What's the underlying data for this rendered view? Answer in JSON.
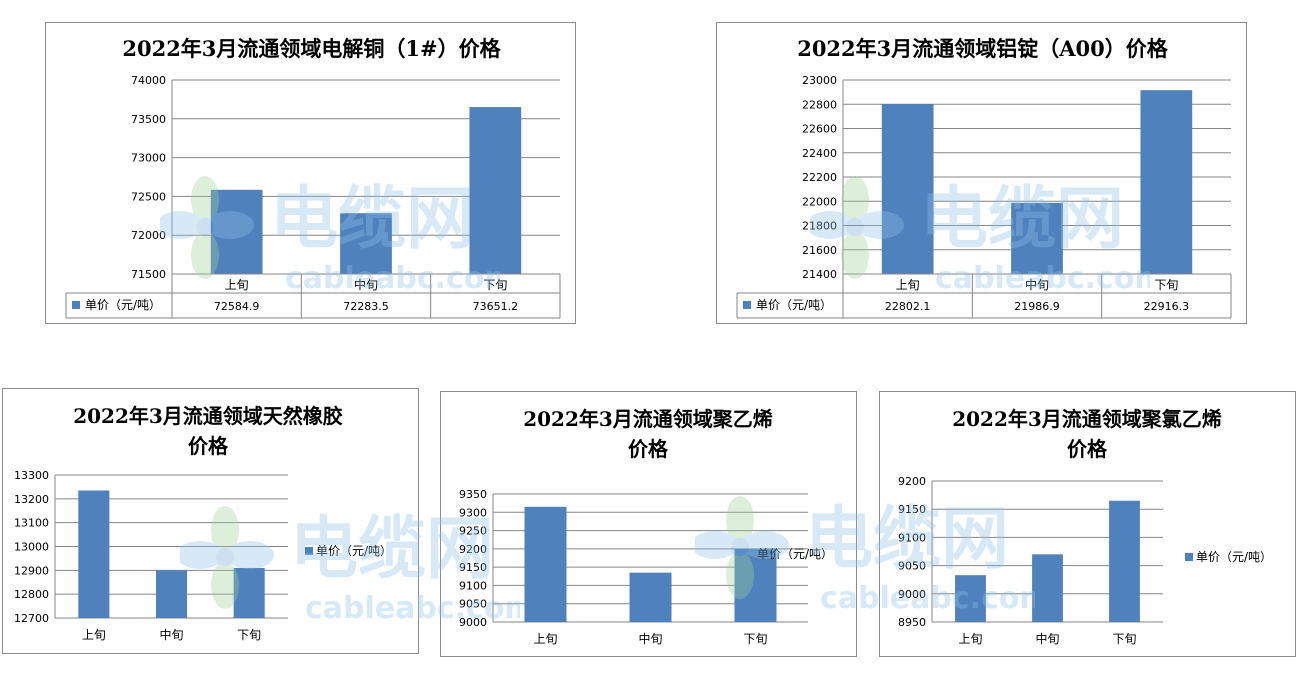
{
  "colors": {
    "bar": "#4f81bd",
    "grid": "#868686",
    "frame": "#8c8c8c"
  },
  "watermark": {
    "brand": "电缆网",
    "domain": "cableabc.com"
  },
  "chart_data": [
    {
      "id": "copper",
      "type": "bar",
      "title": "2022年3月流通领域电解铜（1#）价格",
      "categories": [
        "上旬",
        "中旬",
        "下旬"
      ],
      "series": [
        {
          "name": "单价（元/吨）",
          "values": [
            72584.9,
            72283.5,
            73651.2
          ]
        }
      ],
      "value_labels": [
        "72584.9",
        "72283.5",
        "73651.2"
      ],
      "ylim": [
        71500,
        74000
      ],
      "yticks": [
        71500,
        72000,
        72500,
        73000,
        73500,
        74000
      ],
      "grid": true,
      "legend": "data-table"
    },
    {
      "id": "aluminum",
      "type": "bar",
      "title": "2022年3月流通领域铝锭（A00）价格",
      "categories": [
        "上旬",
        "中旬",
        "下旬"
      ],
      "series": [
        {
          "name": "单价（元/吨）",
          "values": [
            22802.1,
            21986.9,
            22916.3
          ]
        }
      ],
      "value_labels": [
        "22802.1",
        "21986.9",
        "22916.3"
      ],
      "ylim": [
        21400,
        23000
      ],
      "yticks": [
        21400,
        21600,
        21800,
        22000,
        22200,
        22400,
        22600,
        22800,
        23000
      ],
      "grid": true,
      "legend": "data-table"
    },
    {
      "id": "rubber",
      "type": "bar",
      "title": "2022年3月流通领域天然橡胶价格",
      "categories": [
        "上旬",
        "中旬",
        "下旬"
      ],
      "series": [
        {
          "name": "单价（元/吨）",
          "values": [
            13235,
            12900,
            12910
          ]
        }
      ],
      "ylim": [
        12700,
        13300
      ],
      "yticks": [
        12700,
        12800,
        12900,
        13000,
        13100,
        13200,
        13300
      ],
      "grid": true,
      "legend": "right"
    },
    {
      "id": "pe",
      "type": "bar",
      "title": "2022年3月流通领域聚乙烯价格",
      "categories": [
        "上旬",
        "中旬",
        "下旬"
      ],
      "series": [
        {
          "name": "单价（元/吨）",
          "values": [
            9315,
            9135,
            9200
          ]
        }
      ],
      "ylim": [
        9000,
        9350
      ],
      "yticks": [
        9000,
        9050,
        9100,
        9150,
        9200,
        9250,
        9300,
        9350
      ],
      "grid": true,
      "legend": "right"
    },
    {
      "id": "pvc",
      "type": "bar",
      "title": "2022年3月流通领域聚氯乙烯价格",
      "categories": [
        "上旬",
        "中旬",
        "下旬"
      ],
      "series": [
        {
          "name": "单价（元/吨）",
          "values": [
            9033,
            9070,
            9165
          ]
        }
      ],
      "ylim": [
        8950,
        9200
      ],
      "yticks": [
        8950,
        9000,
        9050,
        9100,
        9150,
        9200
      ],
      "grid": true,
      "legend": "right"
    }
  ]
}
